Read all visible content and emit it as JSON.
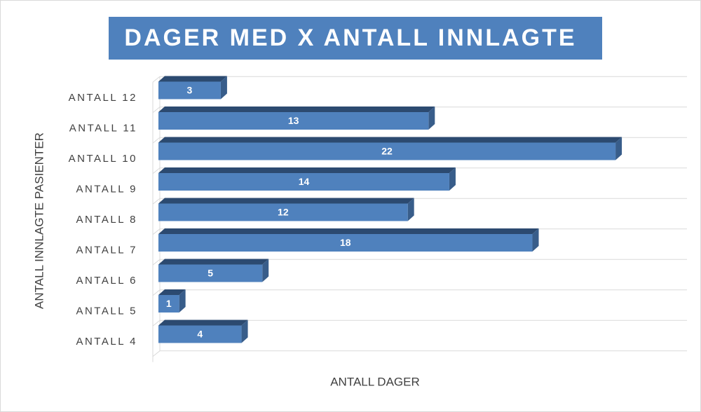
{
  "chart_data": {
    "type": "bar3d_horizontal",
    "title": "DAGER MED X ANTALL INNLAGTE",
    "x_label": "ANTALL DAGER",
    "y_label": "ANTALL INNLAGTE PASIENTER",
    "categories": [
      "ANTALL 4",
      "ANTALL 5",
      "ANTALL 6",
      "ANTALL 7",
      "ANTALL 8",
      "ANTALL 9",
      "ANTALL 10",
      "ANTALL 11",
      "ANTALL 12"
    ],
    "values": [
      4,
      1,
      5,
      18,
      12,
      14,
      22,
      13,
      3
    ],
    "color": "#4f81bd",
    "xlim": [
      0,
      25
    ]
  }
}
